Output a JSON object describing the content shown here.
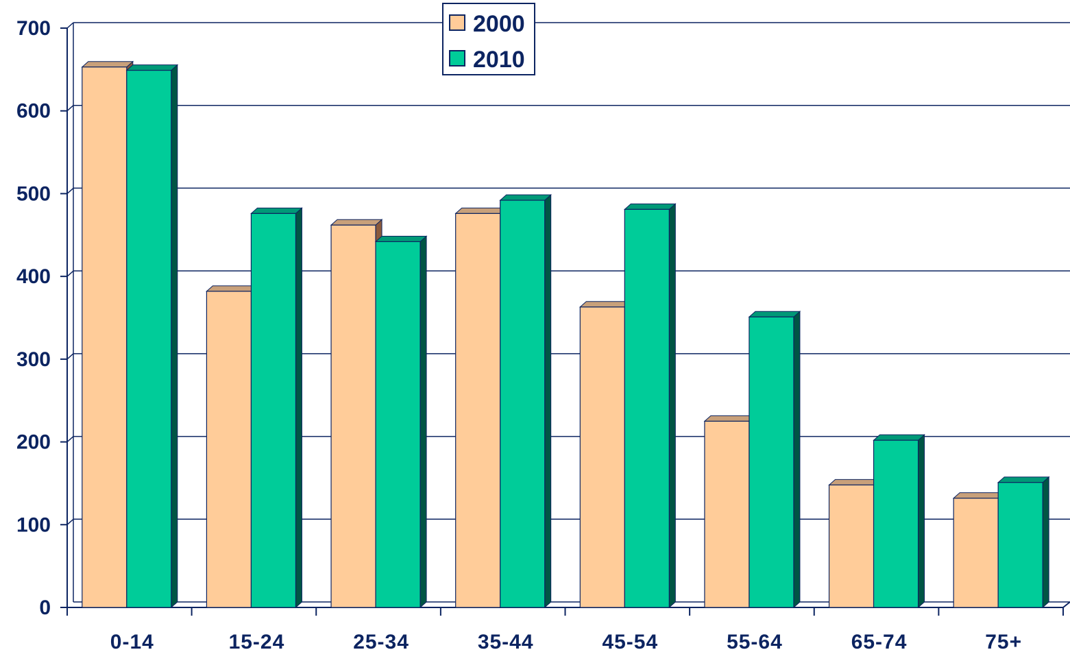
{
  "chart_data": {
    "type": "bar",
    "categories": [
      "0-14",
      "15-24",
      "25-34",
      "35-44",
      "45-54",
      "55-64",
      "65-74",
      "75+"
    ],
    "series": [
      {
        "name": "2000",
        "values": [
          653,
          382,
          462,
          476,
          363,
          225,
          148,
          132
        ]
      },
      {
        "name": "2010",
        "values": [
          649,
          476,
          442,
          492,
          481,
          351,
          202,
          151
        ]
      }
    ],
    "ylim": [
      0,
      700
    ],
    "yticks": [
      "0",
      "100",
      "200",
      "300",
      "400",
      "500",
      "600",
      "700"
    ],
    "grid": true,
    "legend_position": "top-center",
    "colors": {
      "2000": "#ffcc99",
      "2000_top": "#c8a07a",
      "2000_side": "#8a5a3c",
      "2010": "#00cc99",
      "2010_top": "#009977",
      "2010_side": "#005544",
      "axis": "#0c2461",
      "grid": "#0c2461"
    }
  }
}
